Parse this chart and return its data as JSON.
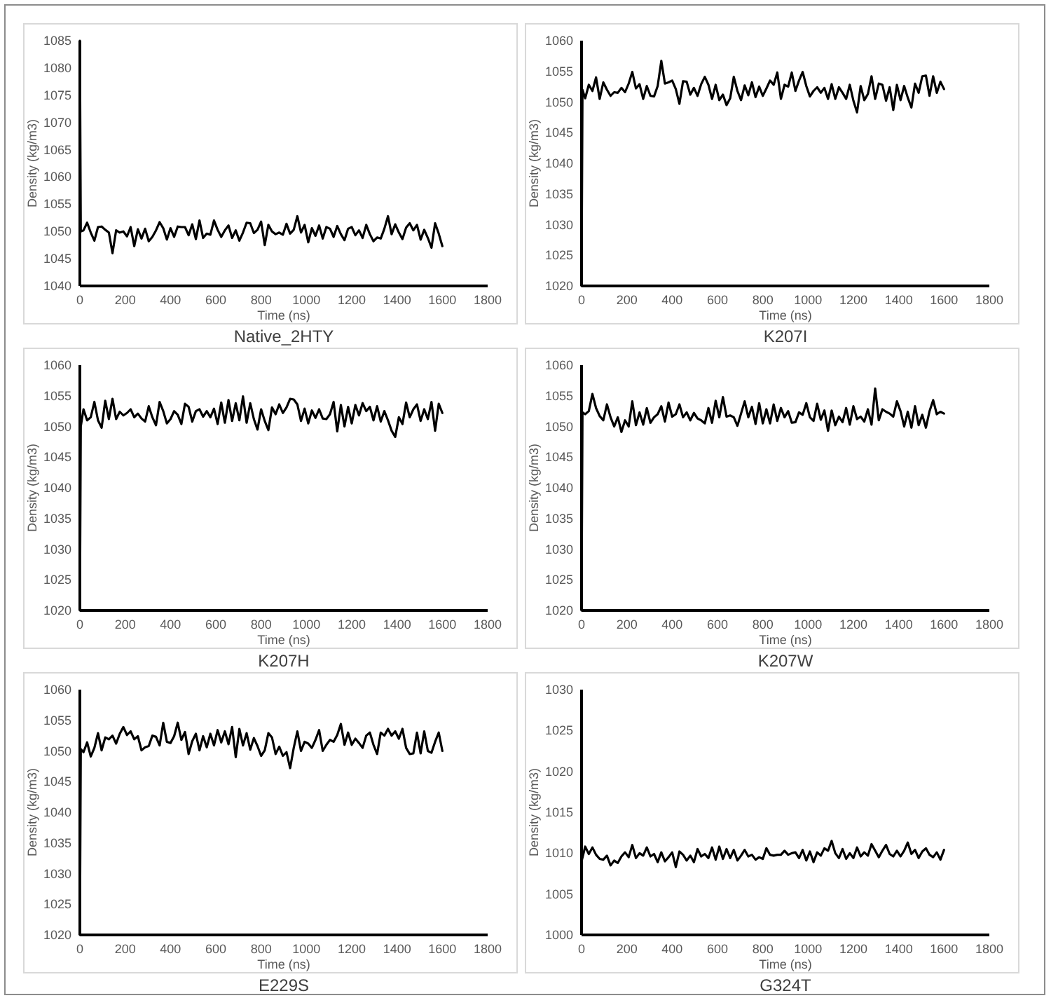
{
  "chart_data": [
    {
      "type": "line",
      "title": "Native_2HTY",
      "xlabel": "Time (ns)",
      "ylabel": "Density (kg/m3)",
      "color": "#000000",
      "xlim": [
        0,
        1800
      ],
      "xticks": [
        0,
        200,
        400,
        600,
        800,
        1000,
        1200,
        1400,
        1600,
        1800
      ],
      "ylim": [
        1040,
        1085
      ],
      "yticks": [
        1040,
        1045,
        1050,
        1055,
        1060,
        1065,
        1070,
        1075,
        1080,
        1085
      ],
      "x": [
        0,
        4,
        16,
        32,
        48,
        64,
        80,
        96,
        112,
        128,
        144,
        160,
        176,
        192,
        208,
        224,
        240,
        256,
        272,
        288,
        304,
        320,
        336,
        352,
        368,
        384,
        400,
        416,
        432,
        448,
        464,
        480,
        496,
        512,
        528,
        544,
        560,
        576,
        592,
        608,
        624,
        640,
        656,
        672,
        688,
        704,
        720,
        736,
        752,
        768,
        784,
        800,
        816,
        832,
        848,
        864,
        880,
        896,
        912,
        928,
        944,
        960,
        976,
        992,
        1008,
        1024,
        1040,
        1056,
        1072,
        1088,
        1104,
        1120,
        1136,
        1152,
        1168,
        1184,
        1200,
        1216,
        1232,
        1248,
        1264,
        1280,
        1296,
        1312,
        1328,
        1344,
        1360,
        1376,
        1392,
        1408,
        1424,
        1440,
        1456,
        1472,
        1488,
        1504,
        1520,
        1536,
        1552,
        1568,
        1584,
        1600
      ],
      "values": [
        1085,
        1050,
        1050.2,
        1051.6,
        1049.8,
        1048.3,
        1050.8,
        1050.9,
        1050.3,
        1049.8,
        1046,
        1050.2,
        1049.8,
        1050,
        1049.1,
        1050.8,
        1047.3,
        1050.4,
        1048.7,
        1050.5,
        1048.2,
        1049,
        1050.2,
        1051.7,
        1050.6,
        1048.5,
        1050.6,
        1049,
        1050.9,
        1050.8,
        1050.8,
        1049.3,
        1051.3,
        1048.6,
        1052,
        1048.8,
        1049.6,
        1049.4,
        1052,
        1050.3,
        1049,
        1050.2,
        1051.1,
        1048.8,
        1050.2,
        1048.3,
        1049.8,
        1051.6,
        1051.5,
        1049.7,
        1050.3,
        1051.8,
        1047.5,
        1051.2,
        1050,
        1049.5,
        1049.8,
        1049.4,
        1051.4,
        1049.6,
        1050.3,
        1052.8,
        1049.8,
        1051.2,
        1048,
        1050.6,
        1049.2,
        1051.1,
        1048.7,
        1050.8,
        1050.5,
        1049,
        1051,
        1049.5,
        1048.4,
        1050.5,
        1050.8,
        1049.3,
        1050.2,
        1048.8,
        1051.2,
        1049.5,
        1048.2,
        1048.9,
        1048.7,
        1050.5,
        1052.8,
        1049.5,
        1051.3,
        1049.8,
        1048.6,
        1050.7,
        1051.5,
        1050.2,
        1051.2,
        1048.5,
        1050.3,
        1048.8,
        1047,
        1051.5,
        1049.6,
        1047.3
      ]
    },
    {
      "type": "line",
      "title": "K207I",
      "xlabel": "Time (ns)",
      "ylabel": "Density (kg/m3)",
      "color": "#000000",
      "xlim": [
        0,
        1800
      ],
      "xticks": [
        0,
        200,
        400,
        600,
        800,
        1000,
        1200,
        1400,
        1600,
        1800
      ],
      "ylim": [
        1020,
        1060
      ],
      "yticks": [
        1020,
        1025,
        1030,
        1035,
        1040,
        1045,
        1050,
        1055,
        1060
      ],
      "x": [
        0,
        4,
        16,
        32,
        48,
        64,
        80,
        96,
        112,
        128,
        144,
        160,
        176,
        192,
        208,
        224,
        240,
        256,
        272,
        288,
        304,
        320,
        336,
        352,
        368,
        384,
        400,
        416,
        432,
        448,
        464,
        480,
        496,
        512,
        528,
        544,
        560,
        576,
        592,
        608,
        624,
        640,
        656,
        672,
        688,
        704,
        720,
        736,
        752,
        768,
        784,
        800,
        816,
        832,
        848,
        864,
        880,
        896,
        912,
        928,
        944,
        960,
        976,
        992,
        1008,
        1024,
        1040,
        1056,
        1072,
        1088,
        1104,
        1120,
        1136,
        1152,
        1168,
        1184,
        1200,
        1216,
        1232,
        1248,
        1264,
        1280,
        1296,
        1312,
        1328,
        1344,
        1360,
        1376,
        1392,
        1408,
        1424,
        1440,
        1456,
        1472,
        1488,
        1504,
        1520,
        1536,
        1552,
        1568,
        1584,
        1600
      ],
      "values": [
        1020,
        1052,
        1050.6,
        1052.8,
        1051.8,
        1054,
        1050.5,
        1053.2,
        1052,
        1051,
        1051.6,
        1051.5,
        1052.3,
        1051.6,
        1053,
        1054.9,
        1052.2,
        1052.9,
        1050.5,
        1052.6,
        1051,
        1050.9,
        1052.6,
        1056.7,
        1053,
        1053.2,
        1053.5,
        1052.1,
        1049.7,
        1053.4,
        1053.3,
        1051.2,
        1052.3,
        1051,
        1052.9,
        1054.1,
        1052.8,
        1050.5,
        1052.8,
        1050.3,
        1051.2,
        1049.5,
        1050.6,
        1054.1,
        1051.8,
        1050.3,
        1052.7,
        1051.1,
        1053.2,
        1050.8,
        1052.5,
        1051,
        1052.2,
        1053.5,
        1052.8,
        1054.8,
        1050.5,
        1052.8,
        1052.5,
        1054.8,
        1051.8,
        1053.5,
        1054.9,
        1052.6,
        1050.9,
        1051.8,
        1052.4,
        1051.5,
        1052.3,
        1050.5,
        1052.9,
        1050.5,
        1052.4,
        1051.5,
        1050.5,
        1052.8,
        1050.2,
        1048.3,
        1052.6,
        1050.3,
        1051.3,
        1054.2,
        1050.5,
        1053,
        1052.8,
        1050.2,
        1052.4,
        1048.7,
        1052.8,
        1050.3,
        1052.6,
        1050.7,
        1049.1,
        1053,
        1051.5,
        1054.2,
        1054.3,
        1051,
        1054.2,
        1051.5,
        1053.3,
        1052.1
      ]
    },
    {
      "type": "line",
      "title": "K207H",
      "xlabel": "Time (ns)",
      "ylabel": "Density (kg/m3)",
      "color": "#000000",
      "xlim": [
        0,
        1800
      ],
      "xticks": [
        0,
        200,
        400,
        600,
        800,
        1000,
        1200,
        1400,
        1600,
        1800
      ],
      "ylim": [
        1020,
        1060
      ],
      "yticks": [
        1020,
        1025,
        1030,
        1035,
        1040,
        1045,
        1050,
        1055,
        1060
      ],
      "x": [
        0,
        4,
        16,
        32,
        48,
        64,
        80,
        96,
        112,
        128,
        144,
        160,
        176,
        192,
        208,
        224,
        240,
        256,
        272,
        288,
        304,
        320,
        336,
        352,
        368,
        384,
        400,
        416,
        432,
        448,
        464,
        480,
        496,
        512,
        528,
        544,
        560,
        576,
        592,
        608,
        624,
        640,
        656,
        672,
        688,
        704,
        720,
        736,
        752,
        768,
        784,
        800,
        816,
        832,
        848,
        864,
        880,
        896,
        912,
        928,
        944,
        960,
        976,
        992,
        1008,
        1024,
        1040,
        1056,
        1072,
        1088,
        1104,
        1120,
        1136,
        1152,
        1168,
        1184,
        1200,
        1216,
        1232,
        1248,
        1264,
        1280,
        1296,
        1312,
        1328,
        1344,
        1360,
        1376,
        1392,
        1408,
        1424,
        1440,
        1456,
        1472,
        1488,
        1504,
        1520,
        1536,
        1552,
        1568,
        1584,
        1600
      ],
      "values": [
        1020,
        1050,
        1052.8,
        1051,
        1051.5,
        1054,
        1051,
        1049.8,
        1054.2,
        1051.2,
        1054.5,
        1051.2,
        1052.4,
        1051.8,
        1052.2,
        1052.8,
        1051.5,
        1052.1,
        1051.3,
        1050.8,
        1053.3,
        1051.5,
        1050.2,
        1054,
        1052.5,
        1050.5,
        1051.2,
        1052.5,
        1051.9,
        1050.4,
        1053.7,
        1053.2,
        1050.8,
        1052.5,
        1052.8,
        1051.6,
        1052.5,
        1051.5,
        1052.9,
        1050.4,
        1053.9,
        1050.6,
        1054.3,
        1050.9,
        1053.8,
        1051,
        1054.9,
        1050.6,
        1053.8,
        1051.2,
        1049.5,
        1052.8,
        1050.9,
        1049.4,
        1053.1,
        1052,
        1053.6,
        1052.2,
        1053.1,
        1054.5,
        1054.4,
        1053.6,
        1050.9,
        1052.9,
        1050.5,
        1052.6,
        1051.4,
        1052.8,
        1051.3,
        1051.2,
        1052,
        1054,
        1049.2,
        1053.5,
        1050,
        1053.2,
        1050.5,
        1053.5,
        1051.8,
        1053.8,
        1052.5,
        1053.2,
        1051,
        1053.3,
        1050.8,
        1052.5,
        1051,
        1049.3,
        1048.3,
        1051.5,
        1050.4,
        1053.9,
        1051.5,
        1052.8,
        1053.6,
        1050.9,
        1052.8,
        1051.2,
        1054,
        1049.3,
        1053.7,
        1052.2
      ]
    },
    {
      "type": "line",
      "title": "K207W",
      "xlabel": "Time (ns)",
      "ylabel": "Density (kg/m3)",
      "color": "#000000",
      "xlim": [
        0,
        1800
      ],
      "xticks": [
        0,
        200,
        400,
        600,
        800,
        1000,
        1200,
        1400,
        1600,
        1800
      ],
      "ylim": [
        1020,
        1060
      ],
      "yticks": [
        1020,
        1025,
        1030,
        1035,
        1040,
        1045,
        1050,
        1055,
        1060
      ],
      "x": [
        0,
        4,
        16,
        32,
        48,
        64,
        80,
        96,
        112,
        128,
        144,
        160,
        176,
        192,
        208,
        224,
        240,
        256,
        272,
        288,
        304,
        320,
        336,
        352,
        368,
        384,
        400,
        416,
        432,
        448,
        464,
        480,
        496,
        512,
        528,
        544,
        560,
        576,
        592,
        608,
        624,
        640,
        656,
        672,
        688,
        704,
        720,
        736,
        752,
        768,
        784,
        800,
        816,
        832,
        848,
        864,
        880,
        896,
        912,
        928,
        944,
        960,
        976,
        992,
        1008,
        1024,
        1040,
        1056,
        1072,
        1088,
        1104,
        1120,
        1136,
        1152,
        1168,
        1184,
        1200,
        1216,
        1232,
        1248,
        1264,
        1280,
        1296,
        1312,
        1328,
        1344,
        1360,
        1376,
        1392,
        1408,
        1424,
        1440,
        1456,
        1472,
        1488,
        1504,
        1520,
        1536,
        1552,
        1568,
        1584,
        1600
      ],
      "values": [
        1020,
        1052.3,
        1052,
        1052.5,
        1055.3,
        1053,
        1051.7,
        1051,
        1053.6,
        1051.5,
        1050,
        1051.5,
        1049.1,
        1051,
        1050,
        1054.1,
        1050.2,
        1052.3,
        1050.3,
        1053,
        1050.6,
        1051.5,
        1052,
        1053.3,
        1050.8,
        1053.9,
        1051.6,
        1052,
        1053.6,
        1051.5,
        1052.3,
        1051,
        1052.2,
        1051.3,
        1051,
        1050.5,
        1053,
        1050.6,
        1054.2,
        1051.5,
        1054.8,
        1051.6,
        1051.8,
        1051.5,
        1050.1,
        1052.1,
        1054.1,
        1051.5,
        1053.2,
        1050.4,
        1053.8,
        1050.5,
        1052.8,
        1050.5,
        1053.6,
        1050.9,
        1053,
        1051.5,
        1052.5,
        1050.6,
        1050.7,
        1052.3,
        1051.9,
        1053.8,
        1051.5,
        1050.9,
        1053.7,
        1051.1,
        1052.6,
        1049.3,
        1052.6,
        1050.2,
        1051.6,
        1050.7,
        1053,
        1050.3,
        1053.3,
        1051.2,
        1051.6,
        1050.8,
        1052.8,
        1050.3,
        1056.2,
        1051,
        1052.8,
        1052.4,
        1052.1,
        1051.6,
        1054.1,
        1052.5,
        1050,
        1052.4,
        1049.8,
        1053.3,
        1050.2,
        1051.9,
        1049.8,
        1052.5,
        1054.3,
        1052,
        1052.4,
        1052.1
      ]
    },
    {
      "type": "line",
      "title": "E229S",
      "xlabel": "Time (ns)",
      "ylabel": "Density (kg/m3)",
      "color": "#000000",
      "xlim": [
        0,
        1800
      ],
      "xticks": [
        0,
        200,
        400,
        600,
        800,
        1000,
        1200,
        1400,
        1600,
        1800
      ],
      "ylim": [
        1020,
        1060
      ],
      "yticks": [
        1020,
        1025,
        1030,
        1035,
        1040,
        1045,
        1050,
        1055,
        1060
      ],
      "x": [
        0,
        4,
        16,
        32,
        48,
        64,
        80,
        96,
        112,
        128,
        144,
        160,
        176,
        192,
        208,
        224,
        240,
        256,
        272,
        288,
        304,
        320,
        336,
        352,
        368,
        384,
        400,
        416,
        432,
        448,
        464,
        480,
        496,
        512,
        528,
        544,
        560,
        576,
        592,
        608,
        624,
        640,
        656,
        672,
        688,
        704,
        720,
        736,
        752,
        768,
        784,
        800,
        816,
        832,
        848,
        864,
        880,
        896,
        912,
        928,
        944,
        960,
        976,
        992,
        1008,
        1024,
        1040,
        1056,
        1072,
        1088,
        1104,
        1120,
        1136,
        1152,
        1168,
        1184,
        1200,
        1216,
        1232,
        1248,
        1264,
        1280,
        1296,
        1312,
        1328,
        1344,
        1360,
        1376,
        1392,
        1408,
        1424,
        1440,
        1456,
        1472,
        1488,
        1504,
        1520,
        1536,
        1552,
        1568,
        1584,
        1600
      ],
      "values": [
        1020,
        1050.3,
        1049.8,
        1051.4,
        1049.1,
        1050.5,
        1052.9,
        1050.1,
        1052.2,
        1051.9,
        1052.5,
        1051.2,
        1052.8,
        1053.9,
        1052.6,
        1053.2,
        1051.9,
        1052.4,
        1050.1,
        1050.6,
        1050.8,
        1052.5,
        1052.3,
        1050.9,
        1054.6,
        1051.5,
        1051.3,
        1052.4,
        1054.6,
        1051.8,
        1053.1,
        1049.5,
        1051.6,
        1052.8,
        1050.1,
        1052.4,
        1050.6,
        1052.8,
        1050.9,
        1053.4,
        1051.4,
        1053.2,
        1051.1,
        1053.9,
        1049,
        1053.6,
        1050.9,
        1052.9,
        1050.2,
        1052.1,
        1050.8,
        1049.2,
        1050.1,
        1052.9,
        1052.2,
        1049.5,
        1050.7,
        1049.2,
        1049.8,
        1047.2,
        1050.5,
        1053.2,
        1050,
        1051.5,
        1051.2,
        1050.5,
        1051.8,
        1053.4,
        1050,
        1051,
        1051.8,
        1051.5,
        1052.6,
        1054.4,
        1051,
        1053,
        1051,
        1052,
        1051.3,
        1050.5,
        1052.5,
        1053,
        1051,
        1049.5,
        1053,
        1052.5,
        1053.6,
        1052.5,
        1053.2,
        1052,
        1053.6,
        1050.5,
        1049.5,
        1049.6,
        1053,
        1049.6,
        1053.2,
        1050,
        1049.7,
        1051.5,
        1053,
        1050
      ]
    },
    {
      "type": "line",
      "title": "G324T",
      "xlabel": "Time (ns)",
      "ylabel": "Density (kg/m3)",
      "color": "#000000",
      "xlim": [
        0,
        1800
      ],
      "xticks": [
        0,
        200,
        400,
        600,
        800,
        1000,
        1200,
        1400,
        1600,
        1800
      ],
      "ylim": [
        1000,
        1030
      ],
      "yticks": [
        1000,
        1005,
        1010,
        1015,
        1020,
        1025,
        1030
      ],
      "x": [
        0,
        16,
        32,
        48,
        64,
        80,
        96,
        112,
        128,
        144,
        160,
        176,
        192,
        208,
        224,
        240,
        256,
        272,
        288,
        304,
        320,
        336,
        352,
        368,
        384,
        400,
        416,
        432,
        448,
        464,
        480,
        496,
        512,
        528,
        544,
        560,
        576,
        592,
        608,
        624,
        640,
        656,
        672,
        688,
        704,
        720,
        736,
        752,
        768,
        784,
        800,
        816,
        832,
        848,
        864,
        880,
        896,
        912,
        928,
        944,
        960,
        976,
        992,
        1008,
        1024,
        1040,
        1056,
        1072,
        1088,
        1104,
        1120,
        1136,
        1152,
        1168,
        1184,
        1200,
        1216,
        1232,
        1248,
        1264,
        1280,
        1296,
        1312,
        1328,
        1344,
        1360,
        1376,
        1392,
        1408,
        1424,
        1440,
        1456,
        1472,
        1488,
        1504,
        1520,
        1536,
        1552,
        1568,
        1584,
        1600
      ],
      "values": [
        1009,
        1010.8,
        1009.9,
        1010.7,
        1009.8,
        1009.3,
        1009.2,
        1009.7,
        1008.5,
        1009.1,
        1008.8,
        1009.6,
        1010.1,
        1009.5,
        1011,
        1009.4,
        1010,
        1009.7,
        1010.7,
        1009.6,
        1009.9,
        1008.9,
        1010.1,
        1009,
        1009.5,
        1010.1,
        1008.3,
        1010.2,
        1009.8,
        1009.1,
        1009.7,
        1008.9,
        1010.5,
        1009.6,
        1009.9,
        1009.4,
        1010.7,
        1009.2,
        1010.8,
        1009.3,
        1010.5,
        1009.4,
        1010.4,
        1009.1,
        1009.7,
        1010.4,
        1009.6,
        1009.8,
        1009.2,
        1009.5,
        1009.3,
        1010.6,
        1009.8,
        1009.7,
        1009.8,
        1009.8,
        1010.3,
        1009.8,
        1010,
        1010.1,
        1009.4,
        1010.4,
        1009.1,
        1010.2,
        1008.9,
        1010.1,
        1009.7,
        1010.6,
        1010.3,
        1011.5,
        1010,
        1009.4,
        1010.5,
        1009.3,
        1010,
        1009.4,
        1010.7,
        1009.6,
        1010.1,
        1009.7,
        1011.1,
        1010.3,
        1009.5,
        1010.3,
        1011,
        1009.9,
        1009.6,
        1010.3,
        1009.6,
        1010.3,
        1011.3,
        1009.9,
        1010.4,
        1009.4,
        1010.2,
        1010.6,
        1009.8,
        1009.5,
        1010.1,
        1009.2,
        1010.4
      ]
    }
  ]
}
